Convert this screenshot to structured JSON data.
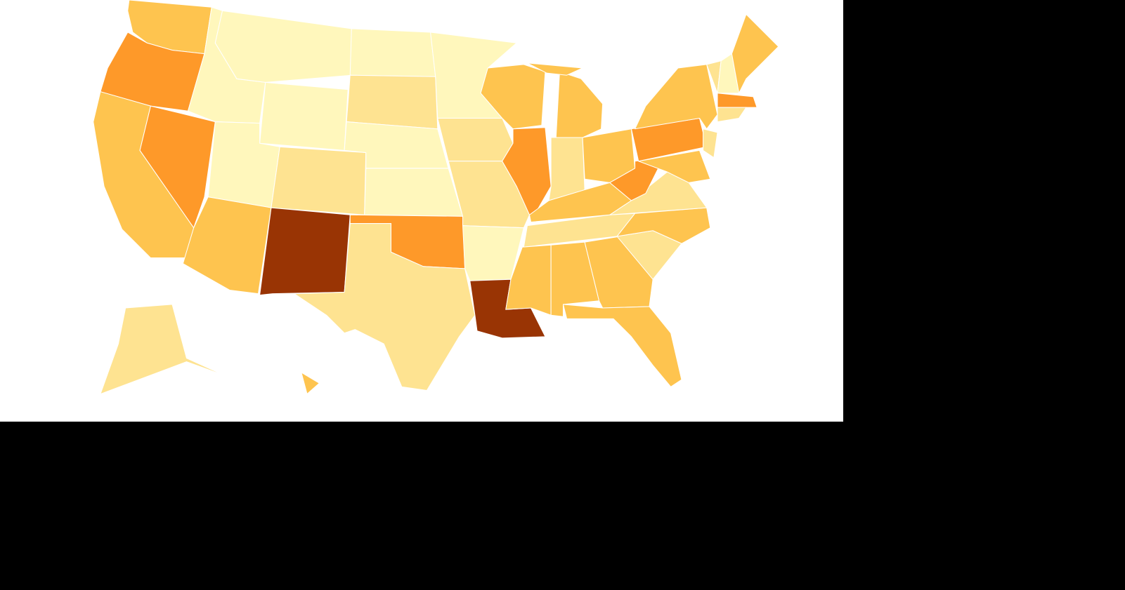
{
  "chart_data": {
    "type": "choropleth",
    "region_colors": [
      "#fec44f",
      "#fe9929",
      "#fec44f",
      "#fe9929",
      "#fff7bc",
      "#fff7bc",
      "#fff7bc",
      "#fff7bc",
      "#fec44f",
      "#fee391",
      "#993404",
      "#fff7bc",
      "#fee391",
      "#fff7bc",
      "#fff7bc",
      "#fe9929",
      "#fee391",
      "#fff7bc",
      "#fee391",
      "#fee391",
      "#fff7bc",
      "#993404",
      "#fec44f",
      "#fe9929",
      "#fec44f",
      "#fec44f",
      "#fee391",
      "#fec44f",
      "#fec44f",
      "#fee391",
      "#fec44f",
      "#fec44f",
      "#fec44f",
      "#fec44f",
      "#fee391",
      "#fec44f",
      "#fee391",
      "#fe9929",
      "#fe9929",
      "#fec44f",
      "#fec44f",
      "#fee391",
      "#fee391",
      "#fff7bc",
      "#fec44f",
      "#fe9929",
      "#fee391",
      "#fee391",
      "#fec44f"
    ]
  }
}
